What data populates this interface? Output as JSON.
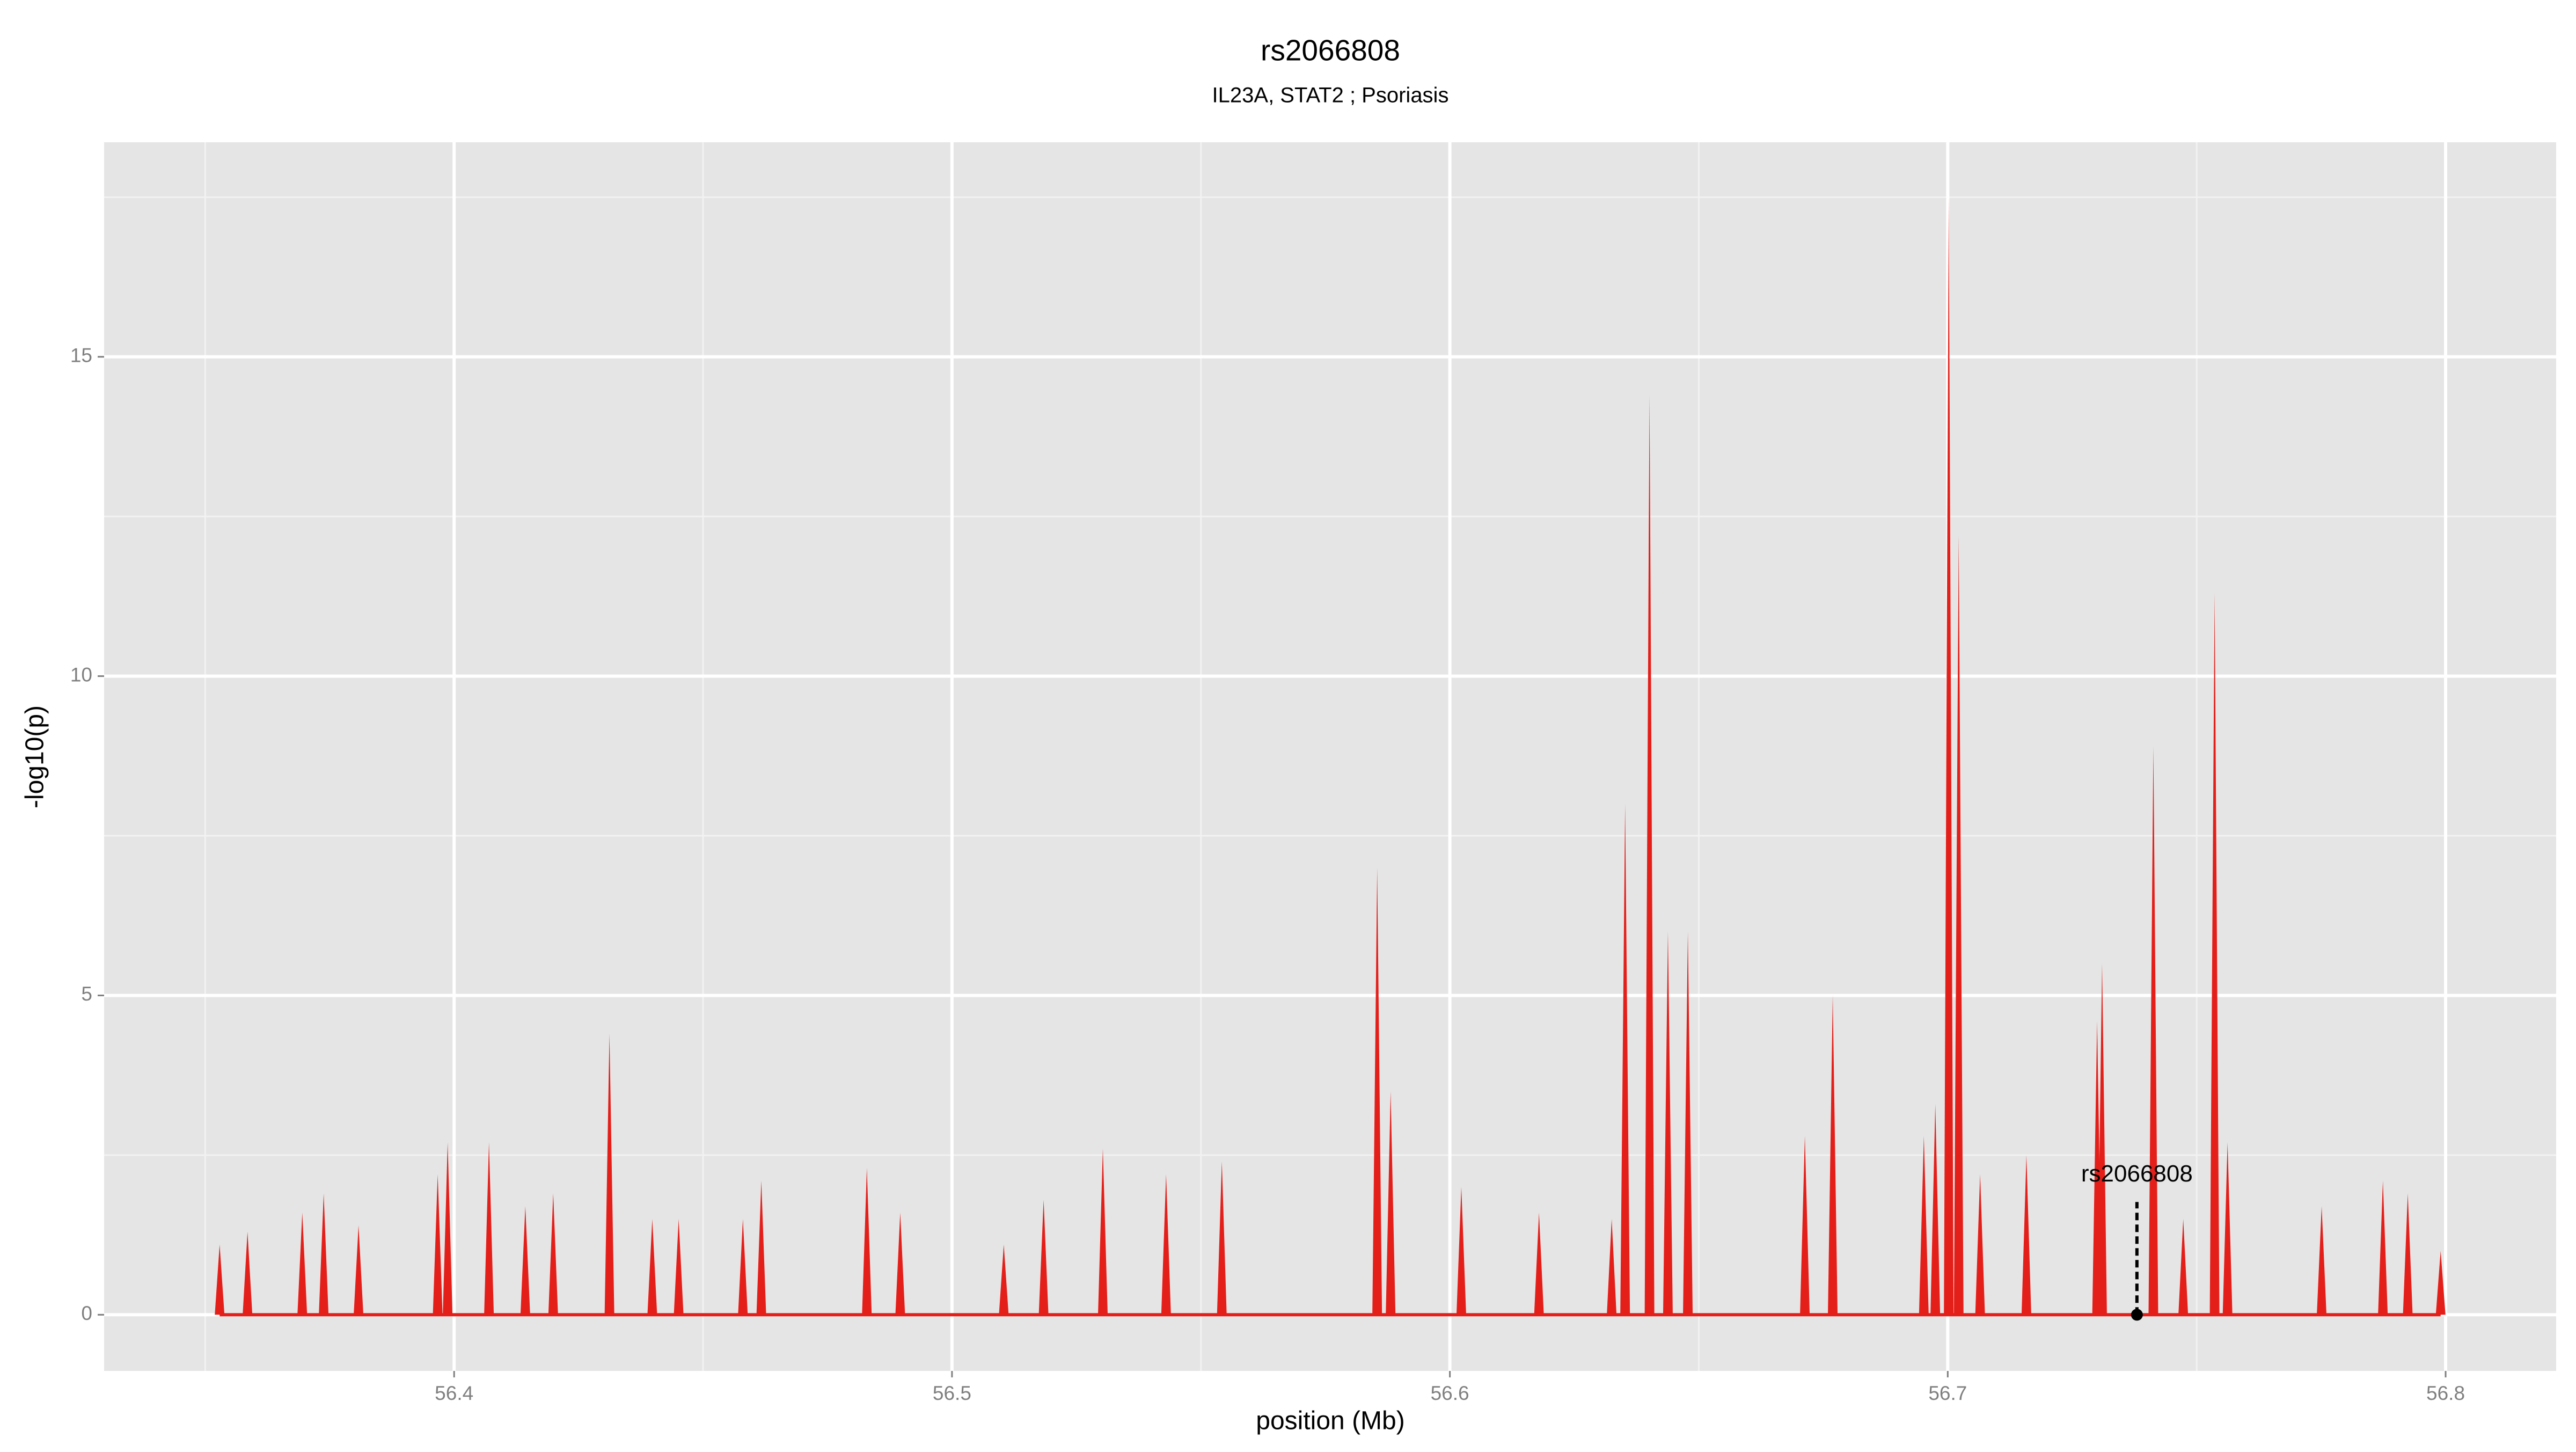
{
  "chart_data": {
    "type": "spike",
    "title": "rs2066808",
    "subtitle": "IL23A, STAT2 ; Psoriasis",
    "xlabel": "position (Mb)",
    "ylabel": "-log10(p)",
    "x": [
      56.3529,
      56.3585,
      56.3695,
      56.3738,
      56.3808,
      56.3967,
      56.3987,
      56.407,
      56.4143,
      56.4199,
      56.4312,
      56.4398,
      56.4451,
      56.458,
      56.4617,
      56.4829,
      56.4896,
      56.5104,
      56.5184,
      56.5303,
      56.543,
      56.5542,
      56.5854,
      56.5881,
      56.6023,
      56.6179,
      56.6325,
      56.6352,
      56.6401,
      56.6438,
      56.6478,
      56.6713,
      56.6769,
      56.6952,
      56.6975,
      56.7002,
      56.7022,
      56.7065,
      56.7158,
      56.73,
      56.731,
      56.7413,
      56.7473,
      56.7536,
      56.7562,
      56.7751,
      56.7874,
      56.7924,
      56.799
    ],
    "series": [
      {
        "color": "#e41f1a",
        "values": [
          1.1,
          1.3,
          1.6,
          1.9,
          1.4,
          2.2,
          2.7,
          2.7,
          1.7,
          1.9,
          4.4,
          1.5,
          1.5,
          1.5,
          2.1,
          2.3,
          1.6,
          1.1,
          1.8,
          2.6,
          2.2,
          2.4,
          7.0,
          3.5,
          2.0,
          1.6,
          1.5,
          8.0,
          14.4,
          6.0,
          6.0,
          2.8,
          5.0,
          2.8,
          3.3,
          17.5,
          12.2,
          2.2,
          2.5,
          4.6,
          5.5,
          8.9,
          1.5,
          11.3,
          2.7,
          1.7,
          2.1,
          1.9,
          1.0
        ]
      }
    ],
    "highlight": {
      "label": "rs2066808",
      "x": 56.738,
      "y": 0
    },
    "xlim": [
      56.3297,
      56.8222
    ],
    "xticks": [
      56.4,
      56.5,
      56.6,
      56.7,
      56.8
    ],
    "ylim": [
      -0.88,
      18.36
    ],
    "yticks": [
      0,
      5,
      10,
      15
    ],
    "grid": true
  }
}
